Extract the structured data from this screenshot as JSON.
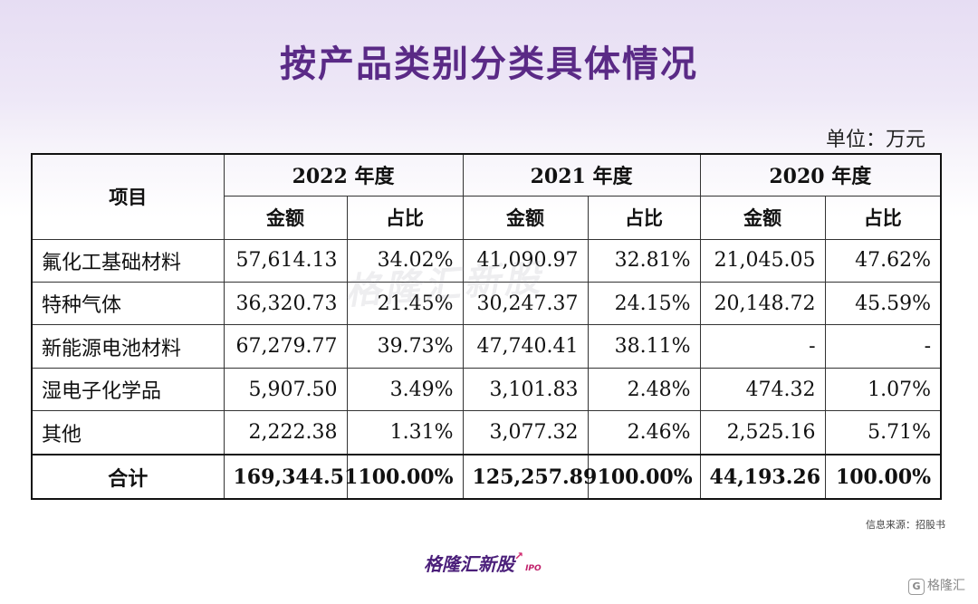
{
  "title": "按产品类别分类具体情况",
  "unit": "单位：万元",
  "table": {
    "col_item": "项目",
    "years": [
      "2022 年度",
      "2021 年度",
      "2020 年度"
    ],
    "sub_amount": "金额",
    "sub_share": "占比",
    "rows": [
      {
        "name": "氟化工基础材料",
        "v": [
          "57,614.13",
          "34.02%",
          "41,090.97",
          "32.81%",
          "21,045.05",
          "47.62%"
        ]
      },
      {
        "name": "特种气体",
        "v": [
          "36,320.73",
          "21.45%",
          "30,247.37",
          "24.15%",
          "20,148.72",
          "45.59%"
        ]
      },
      {
        "name": "新能源电池材料",
        "v": [
          "67,279.77",
          "39.73%",
          "47,740.41",
          "38.11%",
          "-",
          "-"
        ]
      },
      {
        "name": "湿电子化学品",
        "v": [
          "5,907.50",
          "3.49%",
          "3,101.83",
          "2.48%",
          "474.32",
          "1.07%"
        ]
      },
      {
        "name": "其他",
        "v": [
          "2,222.38",
          "1.31%",
          "3,077.32",
          "2.46%",
          "2,525.16",
          "5.71%"
        ]
      }
    ],
    "total": {
      "name": "合计",
      "v": [
        "169,344.51",
        "100.00%",
        "125,257.89",
        "100.00%",
        "44,193.26",
        "100.00%"
      ]
    }
  },
  "watermark": "格隆汇新股",
  "source": "信息来源：招股书",
  "brand": {
    "name": "格隆汇新股",
    "suffix": "IPO"
  },
  "corner": {
    "icon": "G",
    "text": "格隆汇"
  }
}
